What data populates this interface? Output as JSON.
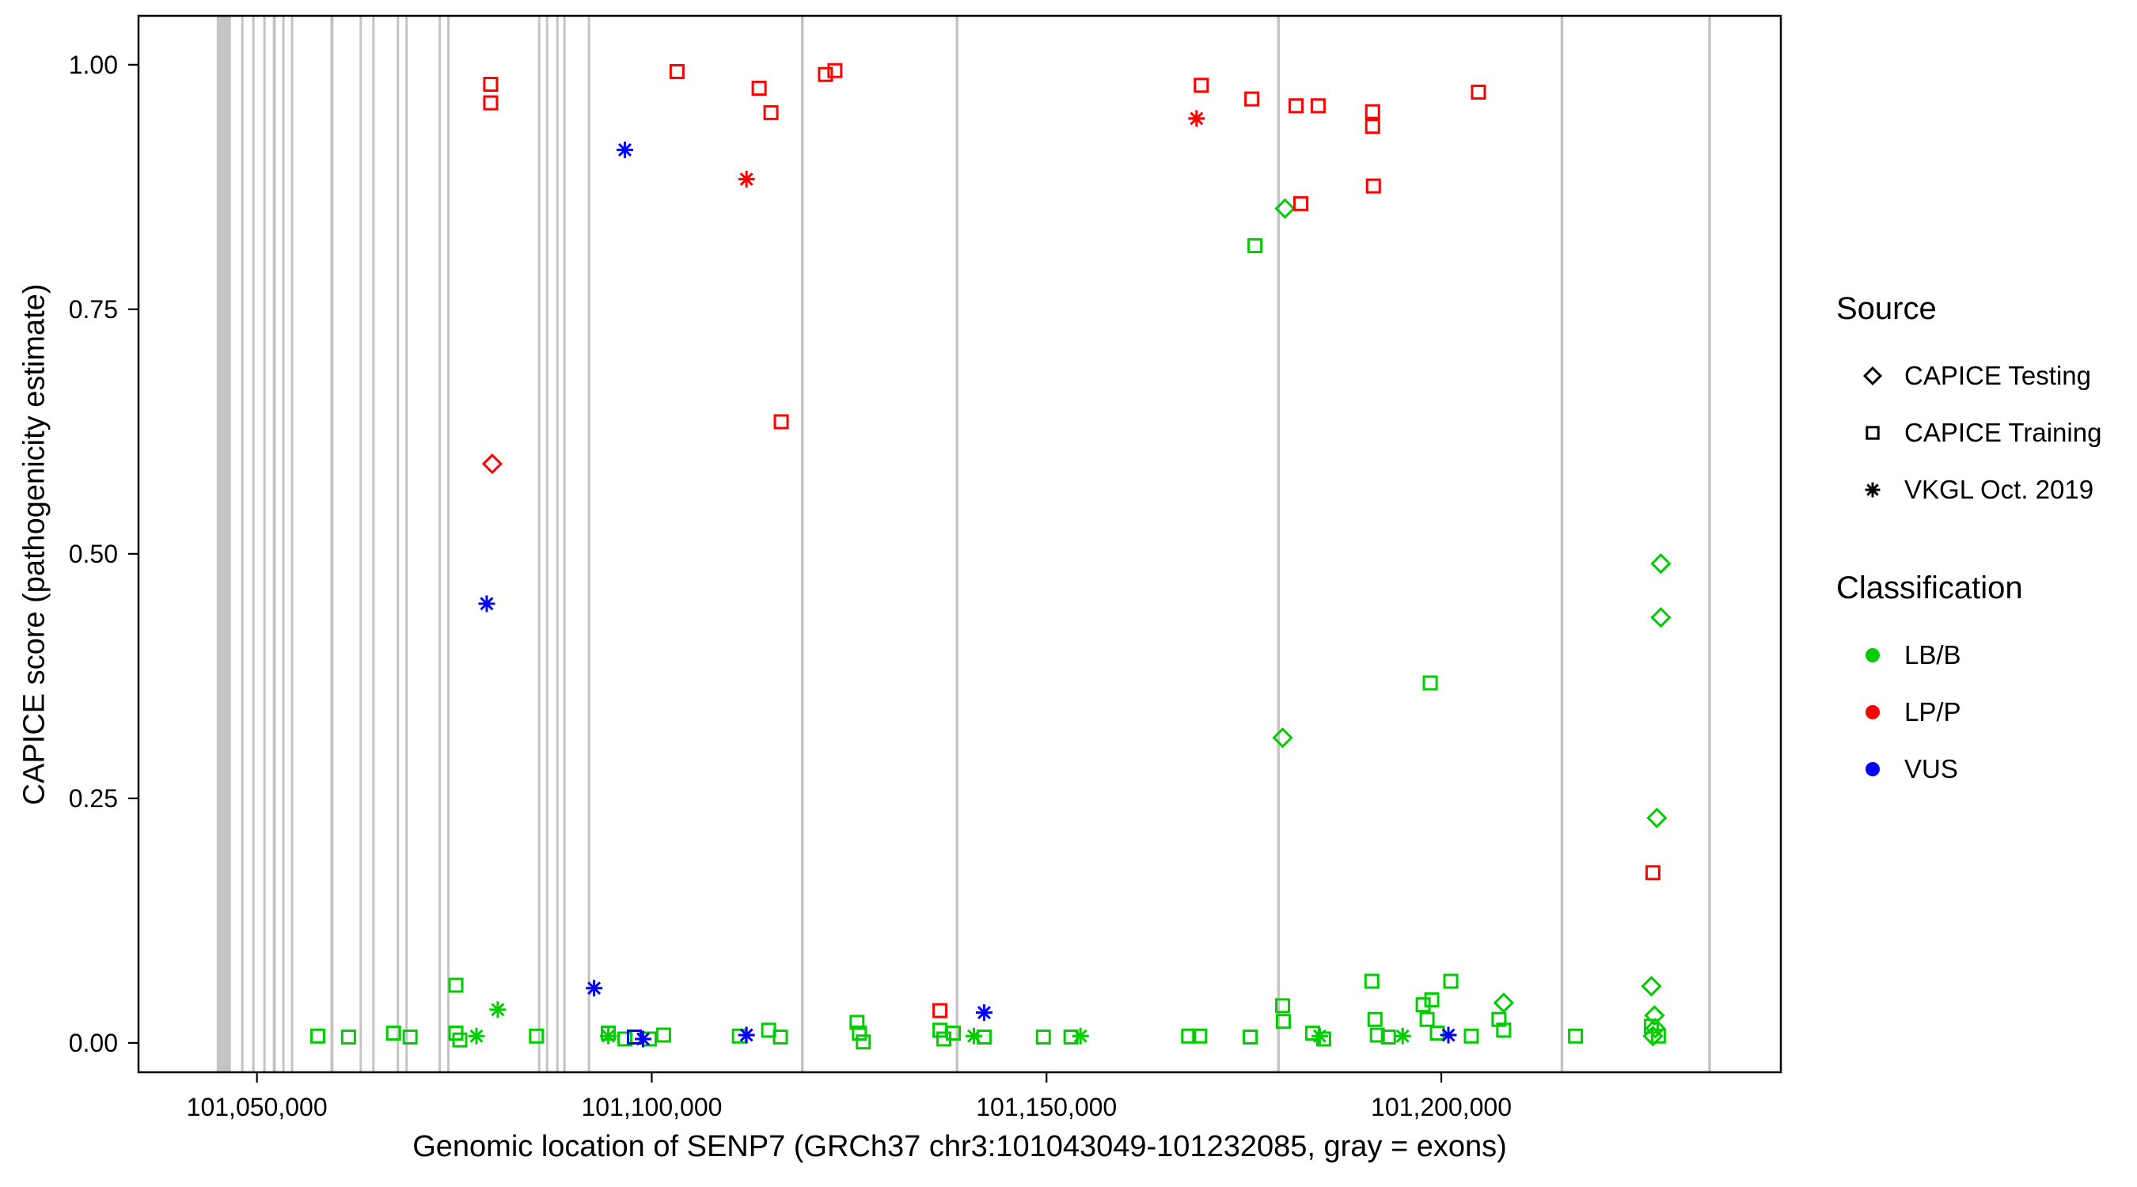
{
  "chart_data": {
    "type": "scatter",
    "title": "",
    "xlabel": "Genomic location of SENP7 (GRCh37 chr3:101043049-101232085, gray = exons)",
    "ylabel": "CAPICE score (pathogenicity estimate)",
    "xlim": [
      101035000,
      101243000
    ],
    "ylim": [
      -0.03,
      1.05
    ],
    "x_ticks": [
      101050000,
      101100000,
      101150000,
      101200000
    ],
    "x_tick_labels": [
      "101,050,000",
      "101,100,000",
      "101,150,000",
      "101,200,000"
    ],
    "y_ticks": [
      0,
      0.25,
      0.5,
      0.75,
      1
    ],
    "y_tick_labels": [
      "0.00",
      "0.25",
      "0.50",
      "0.75",
      "1.00"
    ],
    "grid": false,
    "legend_position": "right",
    "colors": {
      "lb_b": "#00CD00",
      "lp_p": "#FF0000",
      "vus": "#0000FF",
      "exon": "#C4C4C4",
      "border": "#000000"
    },
    "exons": [
      [
        101044900,
        101046700
      ],
      [
        101048000,
        101048300
      ],
      [
        101049400,
        101049700
      ],
      [
        101050800,
        101051100
      ],
      [
        101052000,
        101052400
      ],
      [
        101053200,
        101053500
      ],
      [
        101054300,
        101054600
      ],
      [
        101059300,
        101059700
      ],
      [
        101063000,
        101063300
      ],
      [
        101064600,
        101064900
      ],
      [
        101067700,
        101068000
      ],
      [
        101068800,
        101069100
      ],
      [
        101073000,
        101073300
      ],
      [
        101074100,
        101074400
      ],
      [
        101085600,
        101085900
      ],
      [
        101086600,
        101086900
      ],
      [
        101087900,
        101088200
      ],
      [
        101088800,
        101089100
      ],
      [
        101091900,
        101092200
      ],
      [
        101118900,
        101119250
      ],
      [
        101138500,
        101138850
      ],
      [
        101179200,
        101179550
      ],
      [
        101215100,
        101215450
      ],
      [
        101233800,
        101234150
      ]
    ],
    "series": [
      {
        "name": "LB/B — CAPICE Training",
        "classification": "LB/B",
        "source": "CAPICE Training",
        "marker": "square",
        "color": "#00CD00",
        "points": [
          [
            101075200,
            0.059
          ],
          [
            101057700,
            0.007
          ],
          [
            101061600,
            0.006
          ],
          [
            101067300,
            0.01
          ],
          [
            101069400,
            0.006
          ],
          [
            101075200,
            0.01
          ],
          [
            101075700,
            0.003
          ],
          [
            101085400,
            0.007
          ],
          [
            101094500,
            0.01
          ],
          [
            101096600,
            0.004
          ],
          [
            101099700,
            0.004
          ],
          [
            101101500,
            0.008
          ],
          [
            101111100,
            0.007
          ],
          [
            101114800,
            0.013
          ],
          [
            101116300,
            0.006
          ],
          [
            101126000,
            0.021
          ],
          [
            101126300,
            0.01
          ],
          [
            101126800,
            0.001
          ],
          [
            101136500,
            0.013
          ],
          [
            101137000,
            0.004
          ],
          [
            101138200,
            0.01
          ],
          [
            101142100,
            0.006
          ],
          [
            101149600,
            0.006
          ],
          [
            101153100,
            0.006
          ],
          [
            101168000,
            0.007
          ],
          [
            101169400,
            0.007
          ],
          [
            101175800,
            0.006
          ],
          [
            101179900,
            0.038
          ],
          [
            101180000,
            0.022
          ],
          [
            101183700,
            0.01
          ],
          [
            101185100,
            0.004
          ],
          [
            101191200,
            0.063
          ],
          [
            101191600,
            0.024
          ],
          [
            101191900,
            0.008
          ],
          [
            101193300,
            0.006
          ],
          [
            101197700,
            0.039
          ],
          [
            101198200,
            0.024
          ],
          [
            101198800,
            0.044
          ],
          [
            101198600,
            0.368
          ],
          [
            101201200,
            0.063
          ],
          [
            101199500,
            0.01
          ],
          [
            101203800,
            0.007
          ],
          [
            101207300,
            0.024
          ],
          [
            101207900,
            0.013
          ],
          [
            101217000,
            0.007
          ],
          [
            101226600,
            0.017
          ],
          [
            101227500,
            0.007
          ],
          [
            101176400,
            0.815
          ]
        ]
      },
      {
        "name": "LB/B — VKGL Oct. 2019",
        "classification": "LB/B",
        "source": "VKGL Oct. 2019",
        "marker": "asterisk",
        "color": "#00CD00",
        "points": [
          [
            101080500,
            0.034
          ],
          [
            101077800,
            0.007
          ],
          [
            101094500,
            0.007
          ],
          [
            101140800,
            0.007
          ],
          [
            101154300,
            0.007
          ],
          [
            101184600,
            0.007
          ],
          [
            101195100,
            0.007
          ]
        ]
      },
      {
        "name": "LB/B — CAPICE Testing",
        "classification": "LB/B",
        "source": "CAPICE Testing",
        "marker": "diamond",
        "color": "#00CD00",
        "points": [
          [
            101180200,
            0.853
          ],
          [
            101179900,
            0.312
          ],
          [
            101227800,
            0.49
          ],
          [
            101227800,
            0.435
          ],
          [
            101227300,
            0.23
          ],
          [
            101226600,
            0.058
          ],
          [
            101207900,
            0.041
          ],
          [
            101227000,
            0.028
          ],
          [
            101227100,
            0.015
          ],
          [
            101226800,
            0.007
          ]
        ]
      },
      {
        "name": "VUS — CAPICE Training",
        "classification": "VUS",
        "source": "CAPICE Training",
        "marker": "square",
        "color": "#0000FF",
        "points": [
          [
            101097800,
            0.006
          ]
        ]
      },
      {
        "name": "VUS — VKGL Oct. 2019",
        "classification": "VUS",
        "source": "VKGL Oct. 2019",
        "marker": "asterisk",
        "color": "#0000FF",
        "points": [
          [
            101096600,
            0.913
          ],
          [
            101079100,
            0.449
          ],
          [
            101092700,
            0.056
          ],
          [
            101142100,
            0.031
          ],
          [
            101098900,
            0.004
          ],
          [
            101112000,
            0.008
          ],
          [
            101200900,
            0.008
          ]
        ]
      },
      {
        "name": "LP/P — CAPICE Training",
        "classification": "LP/P",
        "source": "CAPICE Training",
        "marker": "square",
        "color": "#FF0000",
        "points": [
          [
            101079600,
            0.98
          ],
          [
            101079600,
            0.961
          ],
          [
            101103200,
            0.993
          ],
          [
            101113600,
            0.976
          ],
          [
            101115100,
            0.951
          ],
          [
            101122000,
            0.99
          ],
          [
            101123200,
            0.994
          ],
          [
            101116400,
            0.635
          ],
          [
            101169600,
            0.979
          ],
          [
            101176000,
            0.965
          ],
          [
            101181600,
            0.958
          ],
          [
            101184400,
            0.958
          ],
          [
            101182200,
            0.858
          ],
          [
            101191300,
            0.952
          ],
          [
            101191300,
            0.937
          ],
          [
            101191400,
            0.876
          ],
          [
            101204700,
            0.972
          ],
          [
            101136500,
            0.033
          ],
          [
            101226800,
            0.174
          ]
        ]
      },
      {
        "name": "LP/P — CAPICE Testing",
        "classification": "LP/P",
        "source": "CAPICE Testing",
        "marker": "diamond",
        "color": "#FF0000",
        "points": [
          [
            101079800,
            0.592
          ]
        ]
      },
      {
        "name": "LP/P — VKGL Oct. 2019",
        "classification": "LP/P",
        "source": "VKGL Oct. 2019",
        "marker": "asterisk",
        "color": "#FF0000",
        "points": [
          [
            101112000,
            0.883
          ],
          [
            101169000,
            0.945
          ]
        ]
      }
    ],
    "legend": {
      "source": {
        "title": "Source",
        "items": [
          {
            "label": "CAPICE Testing",
            "marker": "diamond"
          },
          {
            "label": "CAPICE Training",
            "marker": "square"
          },
          {
            "label": "VKGL Oct. 2019",
            "marker": "asterisk"
          }
        ]
      },
      "classification": {
        "title": "Classification",
        "items": [
          {
            "label": "LB/B",
            "color": "#00CD00"
          },
          {
            "label": "LP/P",
            "color": "#FF0000"
          },
          {
            "label": "VUS",
            "color": "#0000FF"
          }
        ]
      }
    }
  }
}
